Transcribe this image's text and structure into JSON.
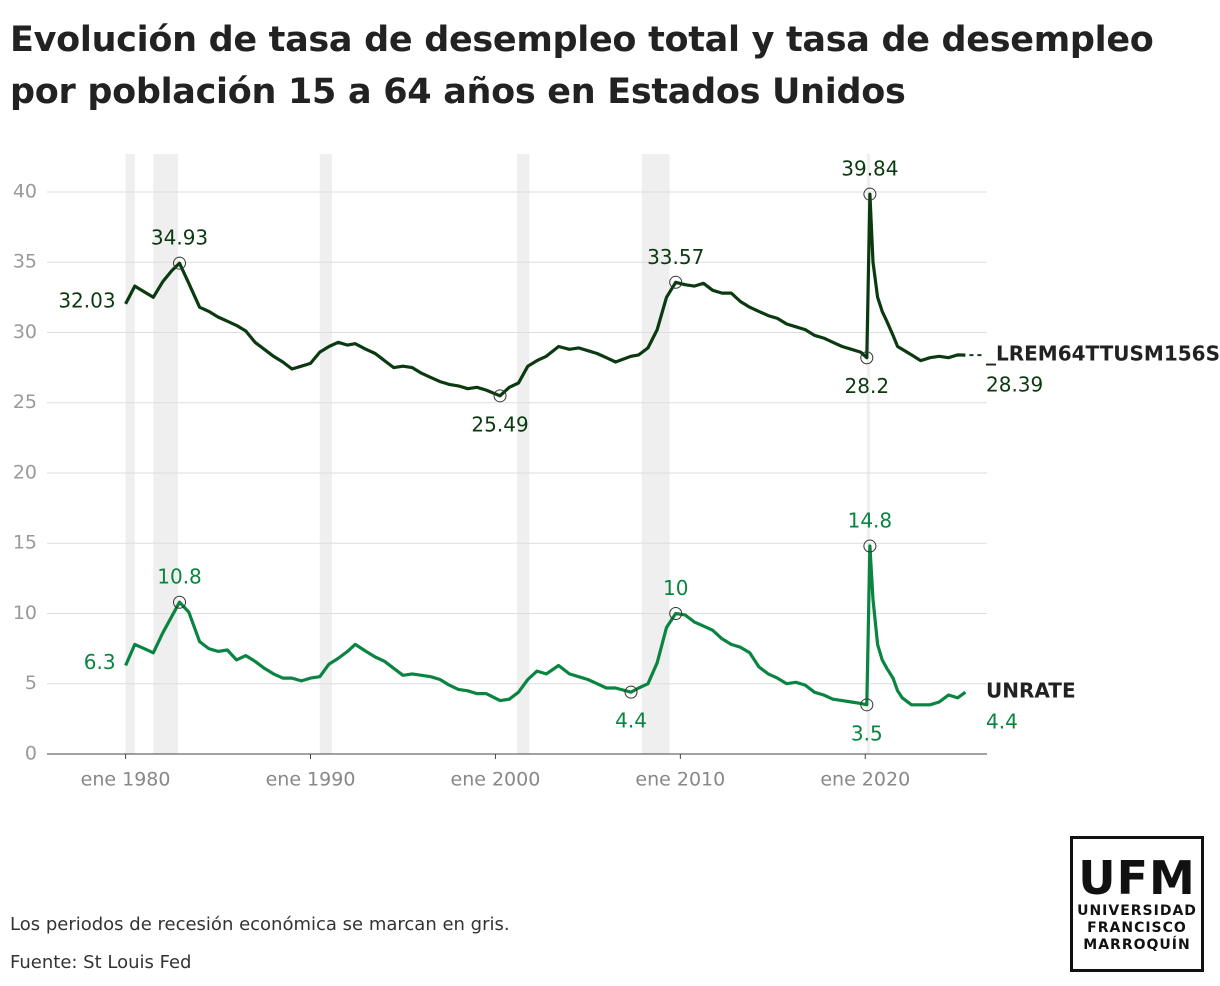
{
  "chart_data": {
    "type": "line",
    "title": "Evolución de tasa de desempleo total y tasa de desempleo por población 15 a 64 años en Estados Unidos",
    "note": "Los periodos de recesión económica se marcan en gris.",
    "source": "Fuente: St Louis Fed",
    "x": [
      "1980-01",
      "1980-07",
      "1981-01",
      "1981-07",
      "1982-01",
      "1982-07",
      "1982-12",
      "1983-06",
      "1984-01",
      "1984-07",
      "1985-01",
      "1985-07",
      "1986-01",
      "1986-07",
      "1987-01",
      "1987-07",
      "1988-01",
      "1988-07",
      "1989-01",
      "1989-07",
      "1990-01",
      "1990-07",
      "1991-01",
      "1991-07",
      "1992-01",
      "1992-06",
      "1993-01",
      "1993-07",
      "1994-01",
      "1994-07",
      "1995-01",
      "1995-07",
      "1996-01",
      "1996-07",
      "1997-01",
      "1997-07",
      "1998-01",
      "1998-07",
      "1999-01",
      "1999-07",
      "2000-04",
      "2000-10",
      "2001-04",
      "2001-10",
      "2002-04",
      "2002-10",
      "2003-06",
      "2004-01",
      "2004-07",
      "2005-01",
      "2005-07",
      "2006-01",
      "2006-07",
      "2007-05",
      "2007-10",
      "2008-04",
      "2008-10",
      "2009-04",
      "2009-10",
      "2010-04",
      "2010-10",
      "2011-04",
      "2011-10",
      "2012-04",
      "2012-10",
      "2013-04",
      "2013-10",
      "2014-04",
      "2014-10",
      "2015-04",
      "2015-10",
      "2016-04",
      "2016-10",
      "2017-04",
      "2017-10",
      "2018-04",
      "2018-10",
      "2019-04",
      "2019-10",
      "2020-02",
      "2020-04",
      "2020-06",
      "2020-09",
      "2020-12",
      "2021-03",
      "2021-07",
      "2021-10",
      "2022-01",
      "2022-07",
      "2023-01",
      "2023-07",
      "2024-01",
      "2024-07",
      "2025-01",
      "2025-06"
    ],
    "series": [
      {
        "name": "_LREM64TTUSM156S",
        "color": "#0b3a10",
        "values": [
          32.03,
          33.3,
          32.9,
          32.5,
          33.6,
          34.4,
          34.93,
          33.5,
          31.8,
          31.5,
          31.1,
          30.8,
          30.5,
          30.1,
          29.3,
          28.8,
          28.3,
          27.9,
          27.4,
          27.6,
          27.8,
          28.6,
          29.0,
          29.3,
          29.1,
          29.2,
          28.8,
          28.5,
          28.0,
          27.5,
          27.6,
          27.5,
          27.1,
          26.8,
          26.5,
          26.3,
          26.2,
          26.0,
          26.1,
          25.9,
          25.49,
          26.1,
          26.4,
          27.6,
          28.0,
          28.3,
          29.0,
          28.8,
          28.9,
          28.7,
          28.5,
          28.2,
          27.9,
          28.3,
          28.4,
          28.9,
          30.2,
          32.5,
          33.57,
          33.4,
          33.3,
          33.5,
          33.0,
          32.8,
          32.8,
          32.2,
          31.8,
          31.5,
          31.2,
          31.0,
          30.6,
          30.4,
          30.2,
          29.8,
          29.6,
          29.3,
          29.0,
          28.8,
          28.6,
          28.2,
          39.84,
          35.0,
          32.5,
          31.5,
          30.8,
          29.8,
          29.0,
          28.8,
          28.4,
          28.0,
          28.2,
          28.3,
          28.2,
          28.4,
          28.39
        ],
        "value_labels": [
          "32.03",
          null,
          null,
          null,
          null,
          null,
          "34.93",
          null,
          null,
          null,
          null,
          null,
          null,
          null,
          null,
          null,
          null,
          null,
          null,
          null,
          null,
          null,
          null,
          null,
          null,
          null,
          null,
          null,
          null,
          null,
          null,
          null,
          null,
          null,
          null,
          null,
          null,
          null,
          null,
          null,
          "25.49",
          null,
          null,
          null,
          null,
          null,
          null,
          null,
          null,
          null,
          null,
          null,
          null,
          null,
          null,
          null,
          null,
          null,
          "33.57",
          null,
          null,
          null,
          null,
          null,
          null,
          null,
          null,
          null,
          null,
          null,
          null,
          null,
          null,
          null,
          null,
          null,
          null,
          null,
          null,
          "28.2",
          "39.84",
          null,
          null,
          null,
          null,
          null,
          null,
          null,
          null,
          null,
          null,
          null,
          null,
          null,
          "28.39"
        ]
      },
      {
        "name": "UNRATE",
        "color": "#0a8441",
        "values": [
          6.3,
          7.8,
          7.5,
          7.2,
          8.6,
          9.8,
          10.8,
          10.1,
          8.0,
          7.5,
          7.3,
          7.4,
          6.7,
          7.0,
          6.6,
          6.1,
          5.7,
          5.4,
          5.4,
          5.2,
          5.4,
          5.5,
          6.4,
          6.8,
          7.3,
          7.8,
          7.3,
          6.9,
          6.6,
          6.1,
          5.6,
          5.7,
          5.6,
          5.5,
          5.3,
          4.9,
          4.6,
          4.5,
          4.3,
          4.3,
          3.8,
          3.9,
          4.4,
          5.3,
          5.9,
          5.7,
          6.3,
          5.7,
          5.5,
          5.3,
          5.0,
          4.7,
          4.7,
          4.4,
          4.7,
          5.0,
          6.5,
          9.0,
          10,
          9.9,
          9.4,
          9.1,
          8.8,
          8.2,
          7.8,
          7.6,
          7.2,
          6.2,
          5.7,
          5.4,
          5.0,
          5.1,
          4.9,
          4.4,
          4.2,
          3.9,
          3.8,
          3.7,
          3.6,
          3.5,
          14.8,
          11.0,
          7.8,
          6.7,
          6.1,
          5.4,
          4.5,
          4.0,
          3.5,
          3.5,
          3.5,
          3.7,
          4.2,
          4.0,
          4.4
        ],
        "value_labels": [
          "6.3",
          null,
          null,
          null,
          null,
          null,
          "10.8",
          null,
          null,
          null,
          null,
          null,
          null,
          null,
          null,
          null,
          null,
          null,
          null,
          null,
          null,
          null,
          null,
          null,
          null,
          null,
          null,
          null,
          null,
          null,
          null,
          null,
          null,
          null,
          null,
          null,
          null,
          null,
          null,
          null,
          null,
          null,
          null,
          null,
          null,
          null,
          null,
          null,
          null,
          null,
          null,
          null,
          null,
          "4.4",
          null,
          null,
          null,
          null,
          "10",
          null,
          null,
          null,
          null,
          null,
          null,
          null,
          null,
          null,
          null,
          null,
          null,
          null,
          null,
          null,
          null,
          null,
          null,
          null,
          null,
          "3.5",
          "14.8",
          null,
          null,
          null,
          null,
          null,
          null,
          null,
          null,
          null,
          null,
          null,
          null,
          null,
          "4.4"
        ]
      }
    ],
    "recessions": [
      [
        "1980-01",
        "1980-07"
      ],
      [
        "1981-07",
        "1982-11"
      ],
      [
        "1990-07",
        "1991-03"
      ],
      [
        "2001-03",
        "2001-11"
      ],
      [
        "2007-12",
        "2009-06"
      ],
      [
        "2020-02",
        "2020-04"
      ]
    ],
    "recession_color": "#efefef",
    "xlim": [
      "1975-10",
      "2026-08"
    ],
    "xticks": [
      {
        "value": "1980-01",
        "label": "ene 1980"
      },
      {
        "value": "1990-01",
        "label": "ene 1990"
      },
      {
        "value": "2000-01",
        "label": "ene 2000"
      },
      {
        "value": "2010-01",
        "label": "ene 2010"
      },
      {
        "value": "2020-01",
        "label": "ene 2020"
      }
    ],
    "ylim": [
      0,
      42.7
    ],
    "yticks": [
      0,
      5,
      10,
      15,
      20,
      25,
      30,
      35,
      40
    ],
    "grid": true
  },
  "logo": {
    "title": "UFM",
    "lines": [
      "UNIVERSIDAD",
      "FRANCISCO",
      "MARROQUÍN"
    ]
  }
}
